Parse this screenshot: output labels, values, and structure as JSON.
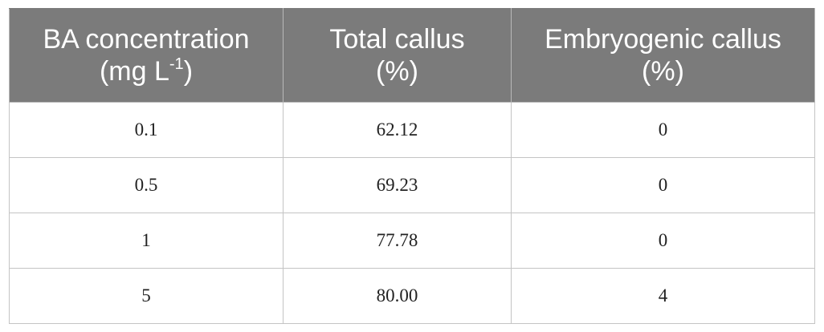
{
  "table": {
    "headers": [
      {
        "line1": "BA concentration",
        "line2_prefix": "(mg L",
        "line2_sup": "-1",
        "line2_suffix": ")"
      },
      {
        "line1": "Total callus",
        "line2": "(%)"
      },
      {
        "line1": "Embryogenic callus",
        "line2": "(%)"
      }
    ],
    "rows": [
      [
        "0.1",
        "62.12",
        "0"
      ],
      [
        "0.5",
        "69.23",
        "0"
      ],
      [
        "1",
        "77.78",
        "0"
      ],
      [
        "5",
        "80.00",
        "4"
      ]
    ]
  }
}
